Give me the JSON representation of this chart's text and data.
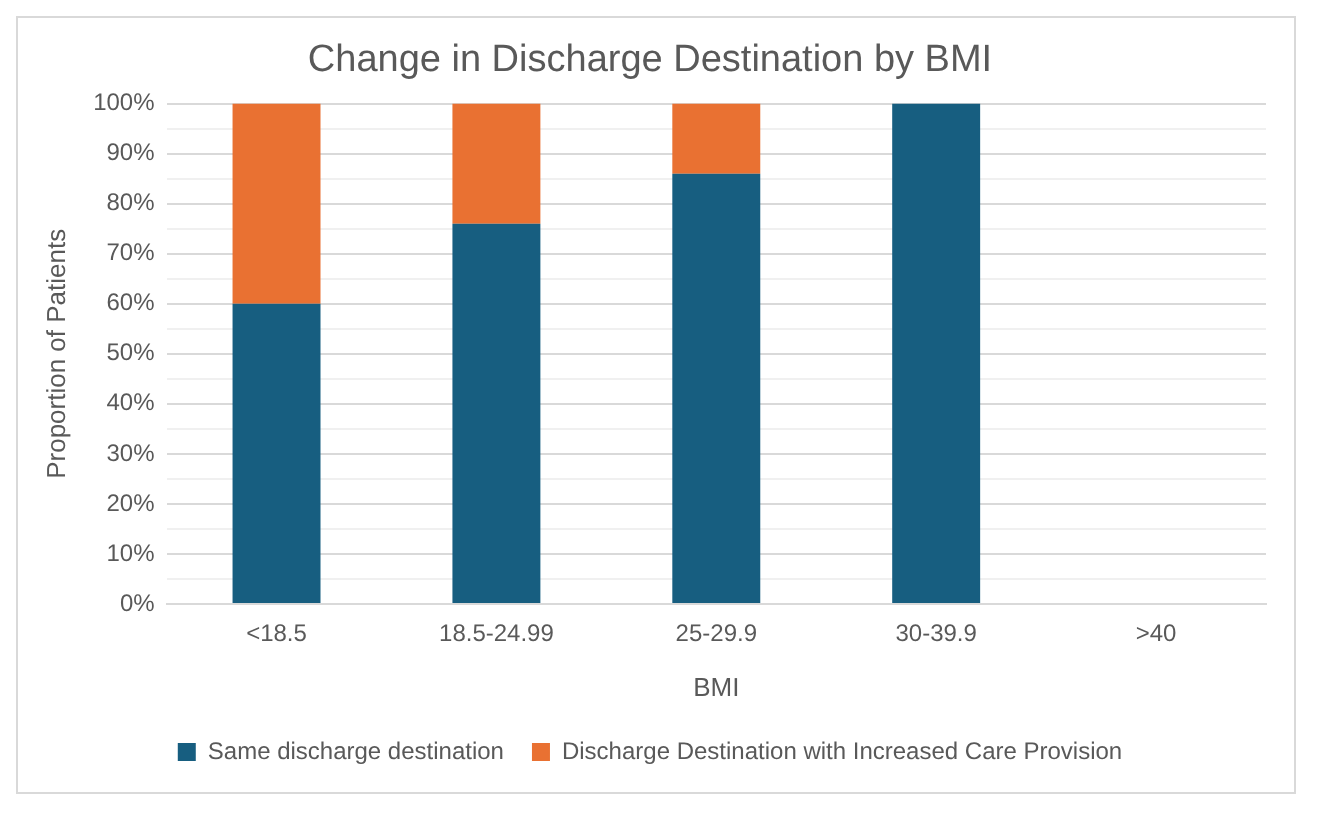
{
  "chart_data": {
    "type": "bar",
    "title": "Change in Discharge Destination by BMI",
    "xlabel": "BMI",
    "ylabel": "Proportion of Patients",
    "categories": [
      "<18.5",
      "18.5-24.99",
      "25-29.9",
      "30-39.9",
      ">40"
    ],
    "series": [
      {
        "name": "Same discharge destination",
        "color": "#175e80",
        "values": [
          60,
          76,
          86,
          100,
          null
        ]
      },
      {
        "name": "Discharge Destination with Increased Care Provision",
        "color": "#e97132",
        "values": [
          40,
          24,
          14,
          0,
          null
        ]
      }
    ],
    "stacked": true,
    "ylim": [
      0,
      100
    ],
    "yticks": [
      {
        "value": 0,
        "label": "0%"
      },
      {
        "value": 5,
        "label": null
      },
      {
        "value": 10,
        "label": "10%"
      },
      {
        "value": 15,
        "label": null
      },
      {
        "value": 20,
        "label": "20%"
      },
      {
        "value": 25,
        "label": null
      },
      {
        "value": 30,
        "label": "30%"
      },
      {
        "value": 35,
        "label": null
      },
      {
        "value": 40,
        "label": "40%"
      },
      {
        "value": 45,
        "label": null
      },
      {
        "value": 50,
        "label": "50%"
      },
      {
        "value": 55,
        "label": null
      },
      {
        "value": 60,
        "label": "60%"
      },
      {
        "value": 65,
        "label": null
      },
      {
        "value": 70,
        "label": "70%"
      },
      {
        "value": 75,
        "label": null
      },
      {
        "value": 80,
        "label": "80%"
      },
      {
        "value": 85,
        "label": null
      },
      {
        "value": 90,
        "label": "90%"
      },
      {
        "value": 95,
        "label": null
      },
      {
        "value": 100,
        "label": "100%"
      }
    ],
    "grid": "y",
    "legend": "bottom"
  }
}
